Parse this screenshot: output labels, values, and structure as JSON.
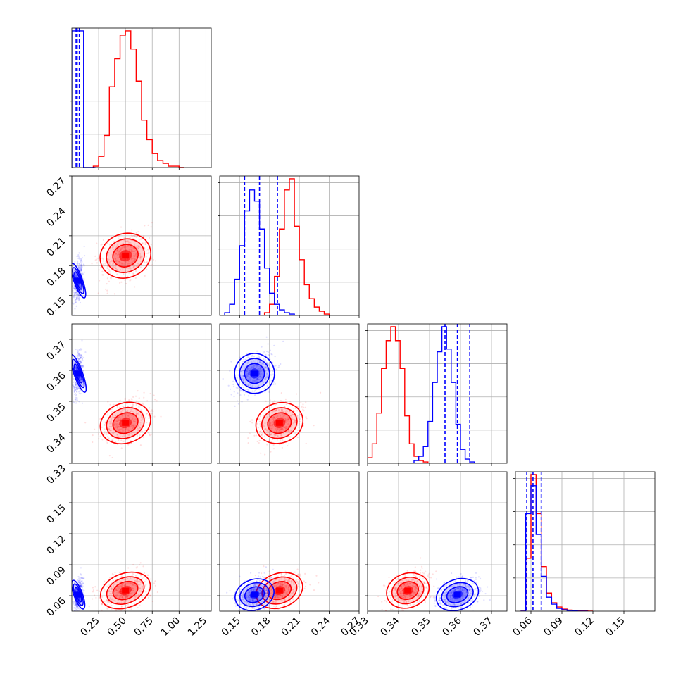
{
  "chart_data": {
    "type": "corner",
    "title": "",
    "parameters": [
      "",
      "",
      "",
      ""
    ],
    "ranges": [
      [
        0.0,
        1.3
      ],
      [
        0.13,
        0.27
      ],
      [
        0.33,
        0.375
      ],
      [
        0.045,
        0.18
      ]
    ],
    "ticks": [
      {
        "values": [
          0.25,
          0.5,
          0.75,
          1.0,
          1.25
        ],
        "labels": [
          "0.25",
          "0.50",
          "0.75",
          "1.00",
          "1.25"
        ]
      },
      {
        "values": [
          0.15,
          0.18,
          0.21,
          0.24,
          0.27
        ],
        "labels": [
          "0.15",
          "0.18",
          "0.21",
          "0.24",
          "0.27"
        ]
      },
      {
        "values": [
          0.33,
          0.34,
          0.35,
          0.36,
          0.37
        ],
        "labels": [
          "0.33",
          "0.34",
          "0.35",
          "0.36",
          "0.37"
        ]
      },
      {
        "values": [
          0.06,
          0.09,
          0.12,
          0.15
        ],
        "labels": [
          "0.06",
          "0.09",
          "0.12",
          "0.15"
        ]
      }
    ],
    "grid": true,
    "series": [
      {
        "color": "#ff0000",
        "means": [
          0.5,
          0.19,
          0.343,
          0.065
        ],
        "stds": [
          0.12,
          0.012,
          0.0035,
          0.009
        ],
        "histograms": [
          {
            "x0": 0.2,
            "dx": 0.05,
            "counts": [
              0.01,
              0.08,
              0.23,
              0.58,
              0.78,
              0.95,
              0.98,
              0.85,
              0.62,
              0.34,
              0.2,
              0.1,
              0.05,
              0.03,
              0.01,
              0.01,
              0.0
            ]
          },
          {
            "x0": 0.135,
            "dx": 0.005,
            "counts": [
              0.0,
              0.0,
              0.0,
              0.0,
              0.0,
              0.0,
              0.0,
              0.0,
              0.02,
              0.08,
              0.28,
              0.62,
              0.9,
              0.98,
              0.64,
              0.4,
              0.22,
              0.12,
              0.06,
              0.03,
              0.01,
              0.0
            ]
          },
          {
            "x0": 0.33,
            "dx": 0.0015,
            "counts": [
              0.04,
              0.14,
              0.36,
              0.68,
              0.88,
              0.98,
              0.88,
              0.68,
              0.34,
              0.14,
              0.05,
              0.02,
              0.01,
              0.0
            ]
          },
          {
            "x0": 0.05,
            "dx": 0.005,
            "counts": [
              0.0,
              0.38,
              0.98,
              0.7,
              0.32,
              0.13,
              0.06,
              0.03,
              0.015,
              0.008,
              0.005,
              0.003,
              0.002,
              0.0
            ]
          }
        ]
      },
      {
        "color": "#0000ff",
        "means": [
          0.06,
          0.165,
          0.359,
          0.061
        ],
        "stds": [
          0.02,
          0.01,
          0.0035,
          0.008
        ],
        "histograms": [
          {
            "x0": 0.0,
            "dx": 0.11,
            "counts": [
              0.98,
              0.0
            ]
          },
          {
            "x0": 0.135,
            "dx": 0.005,
            "counts": [
              0.02,
              0.08,
              0.26,
              0.5,
              0.75,
              0.9,
              0.82,
              0.62,
              0.34,
              0.16,
              0.08,
              0.04,
              0.02,
              0.01,
              0.0,
              0.0
            ]
          },
          {
            "x0": 0.345,
            "dx": 0.0015,
            "counts": [
              0.02,
              0.05,
              0.12,
              0.3,
              0.58,
              0.8,
              0.98,
              0.82,
              0.58,
              0.28,
              0.1,
              0.03,
              0.01,
              0.0
            ]
          },
          {
            "x0": 0.05,
            "dx": 0.005,
            "counts": [
              0.0,
              0.7,
              0.9,
              0.55,
              0.25,
              0.1,
              0.05,
              0.02,
              0.01,
              0.005,
              0.002,
              0.0,
              0.0
            ]
          }
        ]
      }
    ],
    "quantile_lines": {
      "color": "#0000ff",
      "values": [
        [
          0.04,
          0.05,
          0.07
        ],
        [
          0.155,
          0.17,
          0.188
        ],
        [
          0.355,
          0.359,
          0.363
        ],
        [
          0.056,
          0.062,
          0.07
        ]
      ]
    }
  }
}
